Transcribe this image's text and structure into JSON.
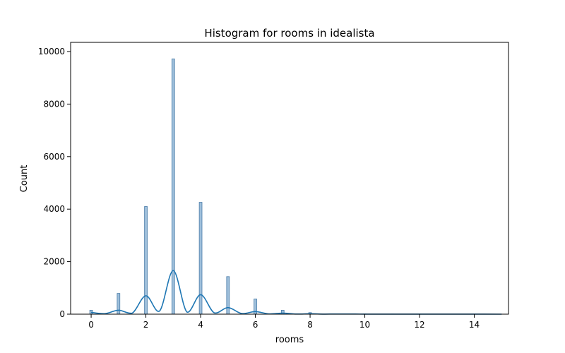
{
  "chart_data": {
    "type": "bar",
    "title": "Histogram for rooms in idealista",
    "xlabel": "rooms",
    "ylabel": "Count",
    "xlim": [
      -0.75,
      15.25
    ],
    "ylim": [
      0,
      10350
    ],
    "xticks": [
      "0",
      "2",
      "4",
      "6",
      "8",
      "10",
      "12",
      "14"
    ],
    "yticks": [
      "0",
      "2000",
      "4000",
      "6000",
      "8000",
      "10000"
    ],
    "bin_width": 0.1,
    "bars": [
      {
        "x": 0,
        "value": 150
      },
      {
        "x": 1,
        "value": 790
      },
      {
        "x": 2,
        "value": 4100
      },
      {
        "x": 3,
        "value": 9720
      },
      {
        "x": 4,
        "value": 4260
      },
      {
        "x": 5,
        "value": 1430
      },
      {
        "x": 6,
        "value": 580
      },
      {
        "x": 7,
        "value": 150
      },
      {
        "x": 8,
        "value": 60
      },
      {
        "x": 9,
        "value": 15
      },
      {
        "x": 10,
        "value": 8
      },
      {
        "x": 11,
        "value": 5
      },
      {
        "x": 12,
        "value": 3
      },
      {
        "x": 13,
        "value": 2
      },
      {
        "x": 14,
        "value": 2
      },
      {
        "x": 15,
        "value": 1
      }
    ],
    "kde": {
      "x": [
        0,
        0.5,
        1,
        1.5,
        2,
        2.5,
        3,
        3.5,
        4,
        4.5,
        5,
        5.5,
        6,
        6.5,
        7,
        7.5,
        8,
        8.5,
        9,
        10,
        11,
        12,
        13,
        14,
        15
      ],
      "y": [
        70,
        20,
        150,
        40,
        700,
        120,
        1660,
        80,
        740,
        50,
        250,
        25,
        100,
        10,
        40,
        5,
        15,
        3,
        6,
        3,
        2,
        1,
        1,
        1,
        0
      ]
    },
    "grid": false,
    "legend": "none",
    "colors": {
      "bar_fill": "#9ebfdb",
      "bar_edge": "#4a7ca8",
      "kde_line": "#1f77b4"
    }
  }
}
